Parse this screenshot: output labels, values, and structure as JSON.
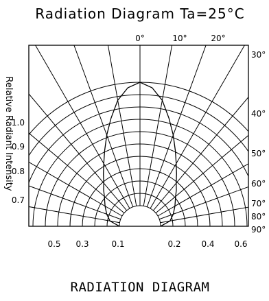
{
  "chart_data": {
    "type": "polar",
    "title": "Radiation Diagram  Ta=25°C",
    "footer": "RADIATION  DIAGRAM",
    "ylabel": "Relative Radiant Intensity",
    "angle_ticks_top": [
      "0°",
      "10°",
      "20°"
    ],
    "angle_ticks_right": [
      "30°",
      "40°",
      "50°",
      "60°",
      "70°",
      "80°",
      "90°"
    ],
    "radius_ticks_left": [
      "1.0",
      "0.9",
      "0.8",
      "0.7"
    ],
    "radius_ticks_bottom": [
      "0.5",
      "0.3",
      "0.1",
      "0.2",
      "0.4",
      "0.6"
    ],
    "grid": true,
    "series": [
      {
        "x": [
          0,
          5,
          10,
          15,
          20,
          25,
          30,
          35,
          40,
          45,
          50,
          60,
          70,
          80,
          90
        ],
        "y": [
          1.0,
          0.96,
          0.87,
          0.74,
          0.62,
          0.51,
          0.42,
          0.35,
          0.29,
          0.25,
          0.21,
          0.16,
          0.12,
          0.08,
          0.0
        ]
      }
    ]
  }
}
